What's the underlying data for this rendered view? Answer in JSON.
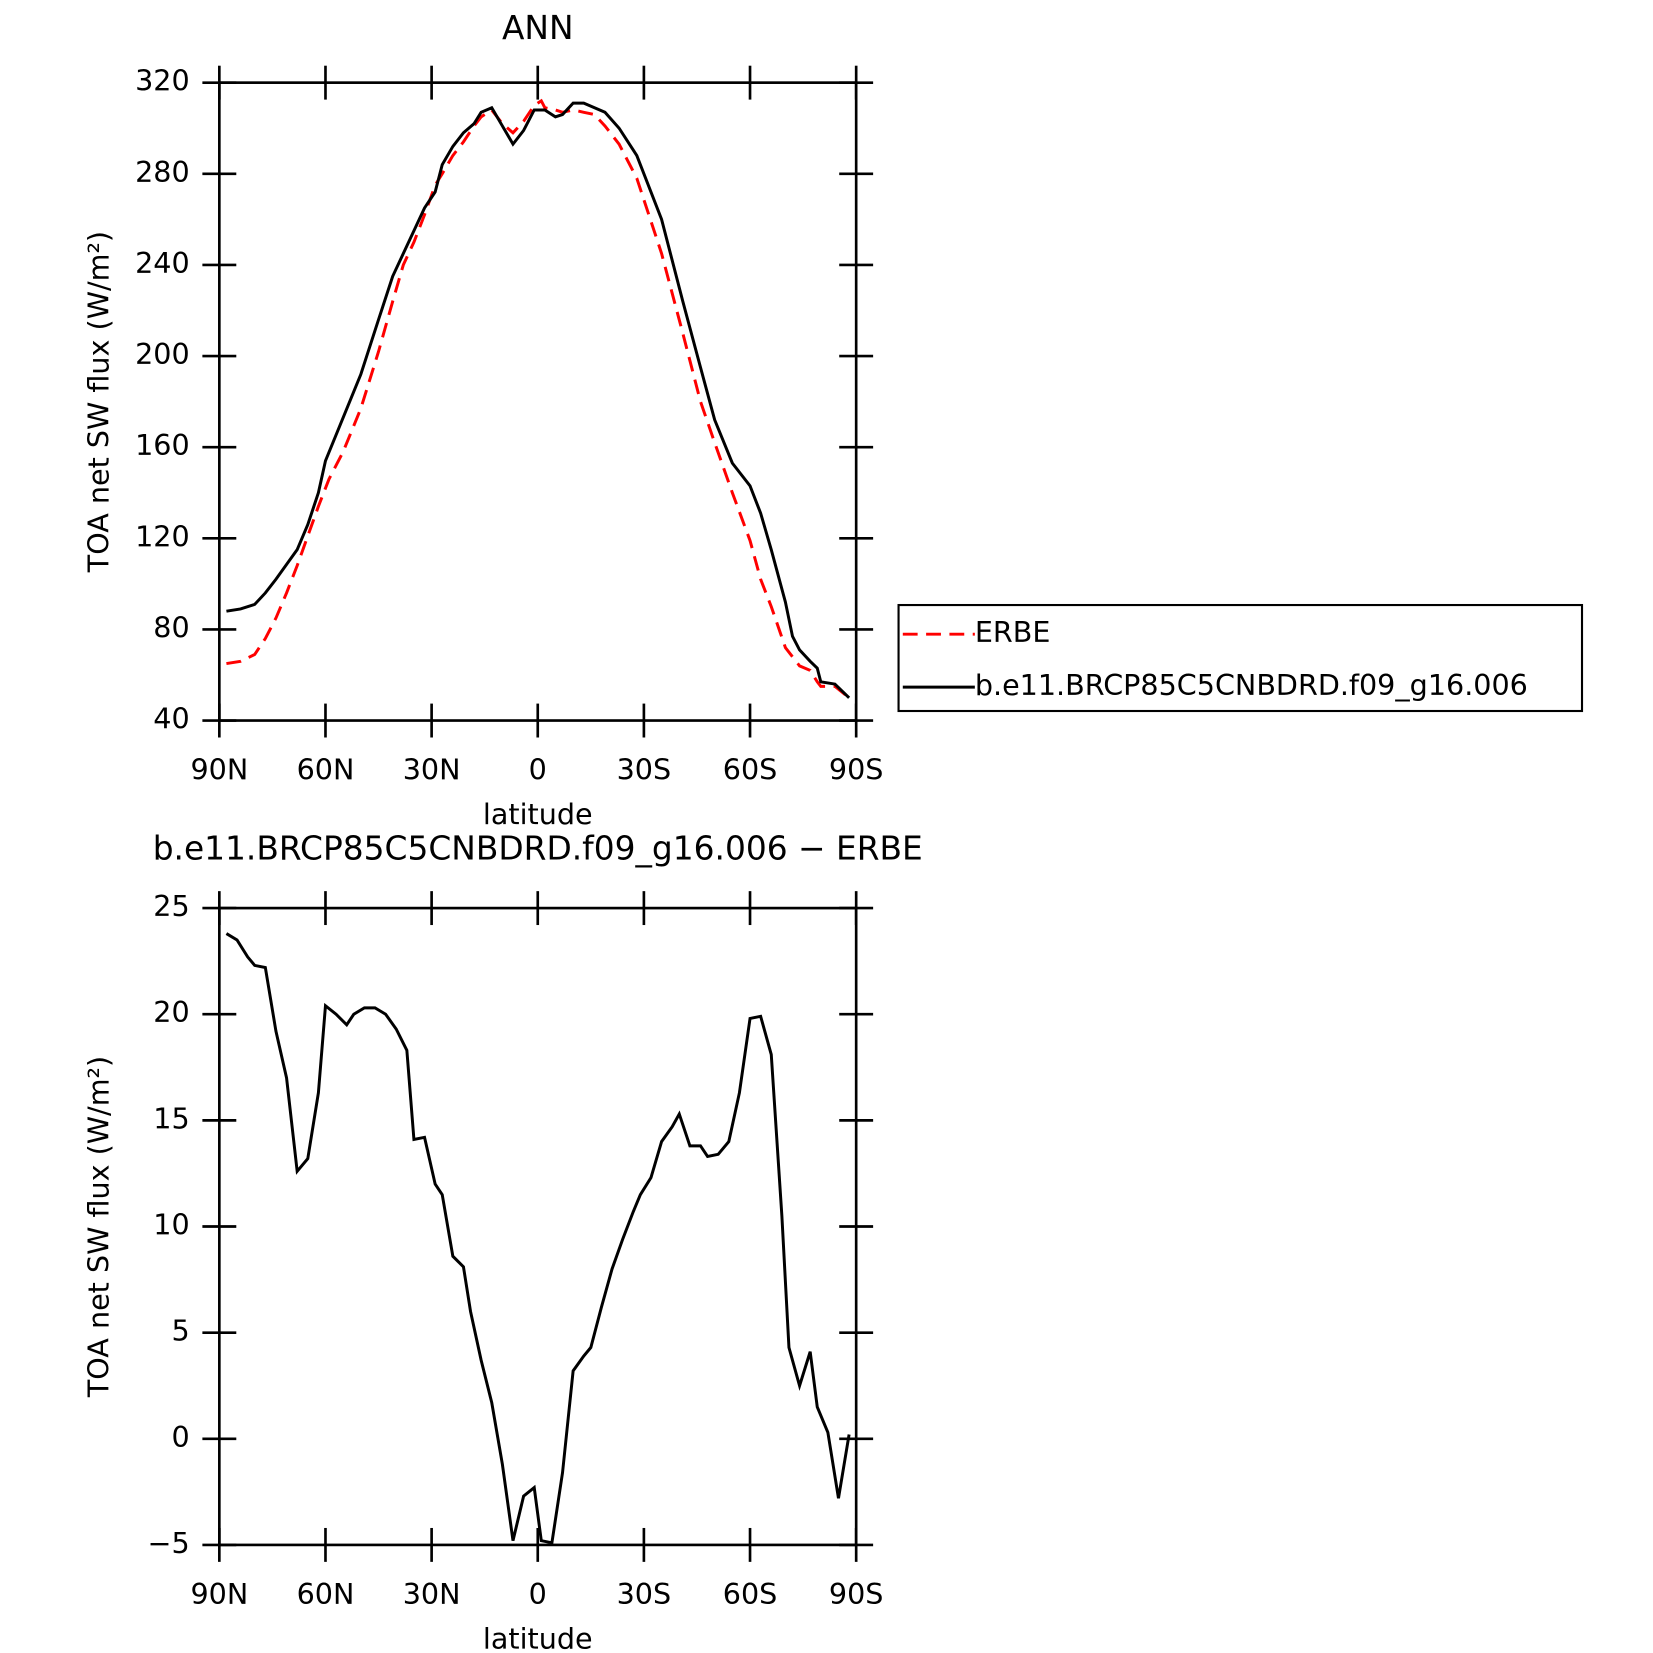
{
  "chart_data": [
    {
      "type": "line",
      "title": "ANN",
      "xlabel": "latitude",
      "ylabel": "TOA net SW flux (W/m²)",
      "xlim": [
        90,
        -90
      ],
      "xticks": [
        {
          "value": 90,
          "label": "90N"
        },
        {
          "value": 60,
          "label": "60N"
        },
        {
          "value": 30,
          "label": "30N"
        },
        0,
        {
          "value": -30,
          "label": "30S"
        },
        {
          "value": -60,
          "label": "60S"
        },
        {
          "value": -90,
          "label": "90S"
        }
      ],
      "ylim": [
        40,
        320
      ],
      "yticks": [
        40,
        80,
        120,
        160,
        200,
        240,
        280,
        320
      ],
      "legend": "outside-right",
      "series": [
        {
          "name": "ERBE",
          "color": "#ff0000",
          "linestyle": "dashed",
          "x": [
            88,
            84,
            80,
            77,
            74,
            71,
            68,
            65,
            62,
            59,
            55,
            50,
            45,
            41,
            38,
            35,
            32,
            29,
            27,
            24,
            21,
            18,
            16,
            13,
            10,
            7,
            4,
            1,
            -1,
            -2,
            -5,
            -7,
            -10,
            -13,
            -16,
            -19,
            -23,
            -28,
            -35,
            -41,
            -46,
            -50,
            -55,
            -60,
            -63,
            -66,
            -70,
            -72,
            -74,
            -77,
            -79,
            -80,
            -84,
            -88
          ],
          "values": [
            65,
            66,
            69,
            76,
            85,
            96,
            108,
            121,
            134,
            146,
            158,
            177,
            202,
            224,
            240,
            250,
            262,
            275,
            280,
            288,
            294,
            301,
            305,
            308,
            302,
            298,
            303,
            310,
            312,
            309,
            308,
            307,
            308,
            307,
            306,
            301,
            293,
            278,
            245,
            210,
            180,
            162,
            140,
            119,
            102,
            90,
            72,
            68,
            64,
            62,
            57,
            55,
            55,
            50
          ]
        },
        {
          "name": "b.e11.BRCP85C5CNBDRD.f09_g16.006",
          "color": "#000000",
          "linestyle": "solid",
          "x": [
            88,
            84,
            80,
            77,
            74,
            68,
            65,
            62,
            60,
            55,
            50,
            45,
            41,
            38,
            35,
            32,
            29,
            27,
            24,
            21,
            18,
            16,
            13,
            10,
            7,
            4,
            1,
            -2,
            -5,
            -7,
            -10,
            -13,
            -19,
            -23,
            -28,
            -35,
            -41,
            -46,
            -50,
            -55,
            -60,
            -63,
            -66,
            -70,
            -72,
            -74,
            -77,
            -79,
            -80,
            -84,
            -88
          ],
          "values": [
            88,
            89,
            91,
            96,
            102,
            115,
            126,
            140,
            154,
            173,
            192,
            216,
            235,
            245,
            255,
            265,
            272,
            284,
            292,
            298,
            302,
            307,
            309,
            301,
            293,
            299,
            308,
            308,
            305,
            306,
            311,
            311,
            307,
            300,
            288,
            260,
            224,
            195,
            172,
            153,
            143,
            131,
            115,
            92,
            77,
            71,
            66,
            63,
            57,
            56,
            50
          ]
        }
      ]
    },
    {
      "type": "line",
      "title": "b.e11.BRCP85C5CNBDRD.f09_g16.006 − ERBE",
      "xlabel": "latitude",
      "ylabel": "TOA net SW flux (W/m²)",
      "xlim": [
        90,
        -90
      ],
      "xticks": [
        {
          "value": 90,
          "label": "90N"
        },
        {
          "value": 60,
          "label": "60N"
        },
        {
          "value": 30,
          "label": "30N"
        },
        0,
        {
          "value": -30,
          "label": "30S"
        },
        {
          "value": -60,
          "label": "60S"
        },
        {
          "value": -90,
          "label": "90S"
        }
      ],
      "ylim": [
        -5,
        25
      ],
      "yticks": [
        {
          "value": -5,
          "label": "−5"
        },
        0,
        5,
        10,
        15,
        20,
        25
      ],
      "series": [
        {
          "color": "#000000",
          "linestyle": "solid",
          "x": [
            88,
            85,
            82,
            80,
            77,
            74,
            71,
            68,
            65,
            62,
            60,
            57,
            54,
            52,
            49,
            46,
            43,
            40,
            37,
            35,
            32,
            29,
            27,
            24,
            21,
            19,
            16,
            13,
            10,
            7,
            4,
            1,
            -1,
            -4,
            -7,
            -10,
            -13,
            -15,
            -18,
            -21,
            -24,
            -27,
            -29,
            -32,
            -35,
            -38,
            -40,
            -43,
            -46,
            -48,
            -51,
            -54,
            -57,
            -60,
            -63,
            -66,
            -69,
            -71,
            -74,
            -77,
            -79,
            -82,
            -85,
            -88
          ],
          "values": [
            23.8,
            23.5,
            22.7,
            22.3,
            22.2,
            19.2,
            17,
            12.6,
            13.2,
            16.3,
            20.4,
            20,
            19.5,
            20,
            20.3,
            20.3,
            20,
            19.3,
            18.3,
            14.1,
            14.2,
            12,
            11.5,
            8.6,
            8.1,
            6,
            3.7,
            1.7,
            -1.2,
            -4.8,
            -2.7,
            -2.3,
            -4.8,
            -4.9,
            -1.6,
            3.2,
            3.9,
            4.3,
            6.2,
            8,
            9.4,
            10.7,
            11.5,
            12.3,
            14,
            14.7,
            15.3,
            13.8,
            13.8,
            13.3,
            13.4,
            14,
            16.3,
            19.8,
            19.9,
            18.1,
            10.5,
            4.3,
            2.5,
            4.1,
            1.5,
            0.3,
            -2.8,
            0.2
          ]
        }
      ]
    }
  ]
}
